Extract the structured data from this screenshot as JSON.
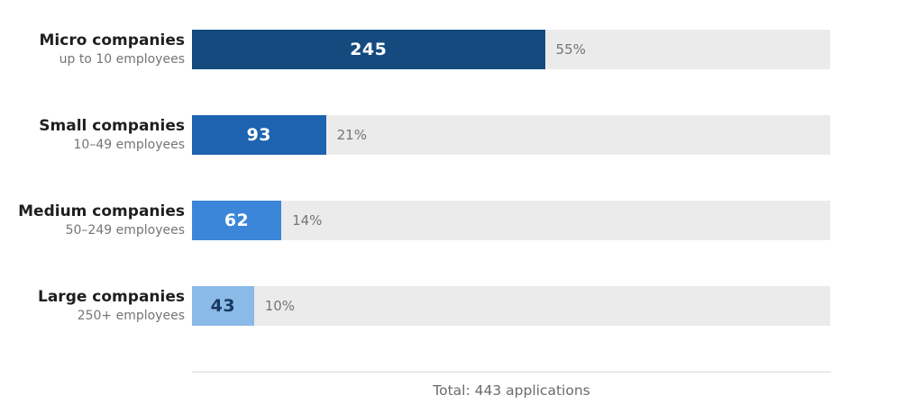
{
  "chart_data": {
    "type": "bar",
    "orientation": "horizontal",
    "title": "",
    "xlim": [
      0,
      443
    ],
    "grid": false,
    "legend": "none",
    "track_color": "#ebebeb",
    "total": 443,
    "total_label": "Total: 443 applications",
    "categories": [
      "Micro companies",
      "Small companies",
      "Medium companies",
      "Large companies"
    ],
    "values": [
      245,
      93,
      62,
      43
    ],
    "rows": [
      {
        "label": "Micro companies",
        "sublabel": "up to 10 employees",
        "value": "245",
        "value_num": 245,
        "percent": "55%",
        "bar_color": "#154a7f",
        "value_text_color": "#ffffff"
      },
      {
        "label": "Small companies",
        "sublabel": "10–49 employees",
        "value": "93",
        "value_num": 93,
        "percent": "21%",
        "bar_color": "#1e63b0",
        "value_text_color": "#ffffff"
      },
      {
        "label": "Medium companies",
        "sublabel": "50–249 employees",
        "value": "62",
        "value_num": 62,
        "percent": "14%",
        "bar_color": "#3c86d9",
        "value_text_color": "#ffffff"
      },
      {
        "label": "Large companies",
        "sublabel": "250+ employees",
        "value": "43",
        "value_num": 43,
        "percent": "10%",
        "bar_color": "#8abae8",
        "value_text_color": "#17395f"
      }
    ]
  },
  "footer": {
    "divider_color": "#d8d8d8",
    "total_text": "Total: 443 applications"
  }
}
